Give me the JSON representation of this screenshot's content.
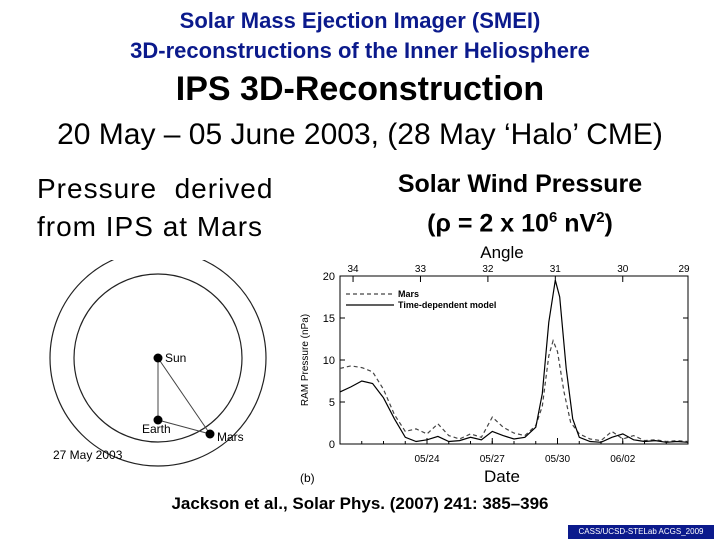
{
  "header": {
    "title_line1": "Solar Mass Ejection Imager (SMEI)",
    "title_line2": "3D-reconstructions of the Inner Heliosphere",
    "subtitle": "IPS 3D-Reconstruction",
    "date_range": "20 May – 05 June 2003, (28 May ‘Halo’ CME)"
  },
  "left_label": {
    "line1": "Pressure  derived",
    "line2": "from IPS at Mars"
  },
  "right_label": {
    "line1": "Solar Wind Pressure",
    "line2_prefix": "(ρ = 2 x 10",
    "line2_exp": "6",
    "line2_mid": " nV",
    "line2_exp2": "2",
    "line2_suffix": ")"
  },
  "orbit_diagram": {
    "sun_label": "Sun",
    "earth_label": "Earth",
    "mars_label": "Mars",
    "date_label": "27 May 2003"
  },
  "chart_data": {
    "type": "line",
    "panel_label": "(b)",
    "top_axis_title": "Angle",
    "top_ticks": [
      "34",
      "33",
      "32",
      "31",
      "30",
      "29"
    ],
    "xlabel": "Date",
    "x_ticks": [
      "05/24",
      "05/27",
      "05/30",
      "06/02"
    ],
    "ylabel": "RAM Pressure (nPa)",
    "ylim": [
      0,
      20
    ],
    "y_ticks": [
      0,
      5,
      10,
      15,
      20
    ],
    "legend_position": "top-left",
    "x_range_days": [
      20,
      36
    ],
    "series": [
      {
        "name": "Mars",
        "style": "dashed",
        "x": [
          20.0,
          20.5,
          21.0,
          21.5,
          22.0,
          22.5,
          23.0,
          23.5,
          24.0,
          24.5,
          25.0,
          25.5,
          26.0,
          26.5,
          27.0,
          27.5,
          28.0,
          28.5,
          29.0,
          29.3,
          29.6,
          29.8,
          30.0,
          30.3,
          30.6,
          31.0,
          31.5,
          32.0,
          32.5,
          33.0,
          33.5,
          34.0,
          34.5,
          35.0,
          35.5,
          36.0
        ],
        "y": [
          9.0,
          9.3,
          9.1,
          8.6,
          6.5,
          3.5,
          1.5,
          1.8,
          1.2,
          2.4,
          1.0,
          0.6,
          1.2,
          0.8,
          3.2,
          2.0,
          1.3,
          1.0,
          2.2,
          4.5,
          10.5,
          12.3,
          11.0,
          6.2,
          2.6,
          1.2,
          0.6,
          0.4,
          1.5,
          0.6,
          1.0,
          0.4,
          0.5,
          0.3,
          0.4,
          0.3
        ]
      },
      {
        "name": "Time-dependent model",
        "style": "solid",
        "x": [
          20.0,
          20.5,
          21.0,
          21.5,
          22.0,
          22.5,
          23.0,
          23.5,
          24.0,
          24.5,
          25.0,
          25.5,
          26.0,
          26.5,
          27.0,
          27.5,
          28.0,
          28.5,
          29.0,
          29.3,
          29.6,
          29.9,
          30.1,
          30.4,
          30.7,
          31.0,
          31.5,
          32.0,
          32.5,
          33.0,
          33.5,
          34.0,
          34.5,
          35.0,
          35.5,
          36.0
        ],
        "y": [
          6.2,
          6.8,
          7.5,
          7.2,
          5.5,
          3.0,
          0.8,
          0.3,
          0.5,
          0.9,
          0.3,
          0.4,
          0.8,
          0.5,
          1.5,
          1.0,
          0.6,
          0.8,
          2.0,
          6.0,
          14.5,
          19.5,
          17.5,
          9.0,
          3.0,
          0.8,
          0.3,
          0.2,
          0.8,
          1.2,
          0.5,
          0.3,
          0.4,
          0.2,
          0.3,
          0.2
        ]
      }
    ]
  },
  "citation": "Jackson et al., Solar Phys. (2007) 241: 385–396",
  "footer": "CASS/UCSD-STELab ACGS_2009"
}
